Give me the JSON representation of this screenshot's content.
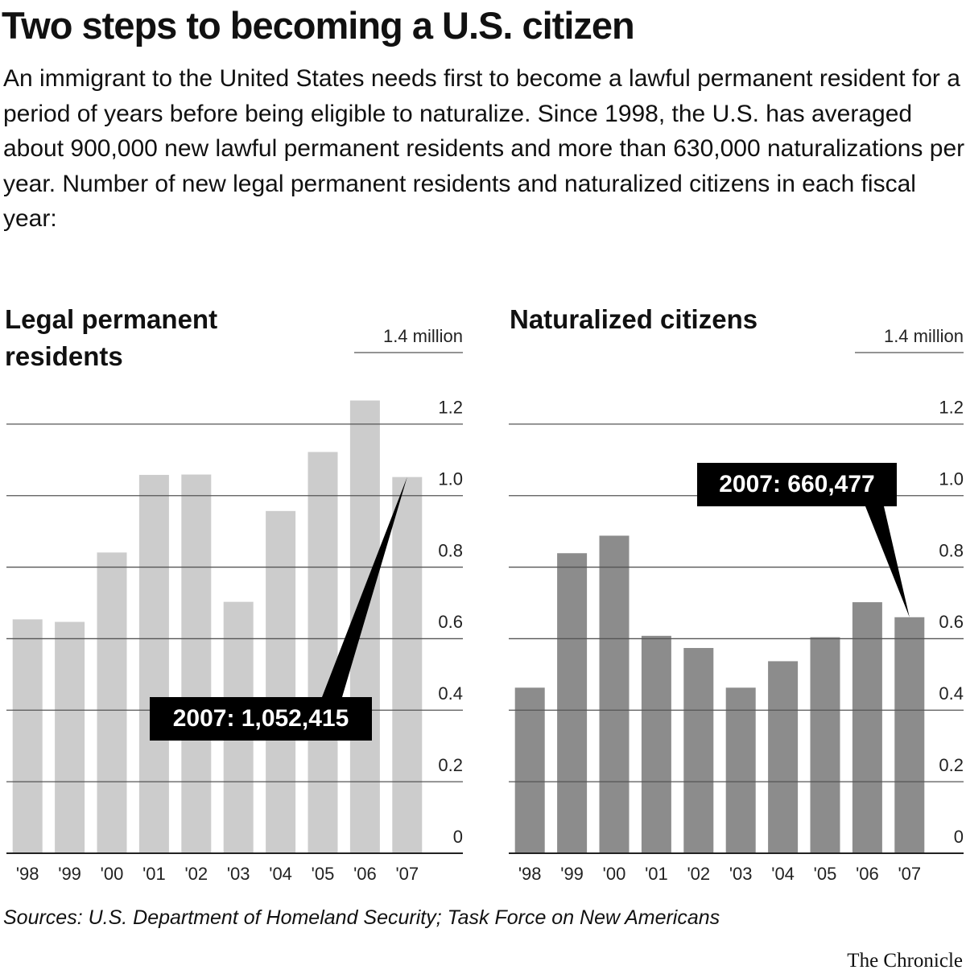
{
  "title": "Two steps to becoming a U.S. citizen",
  "description": "An immigrant to the United States needs first to become a lawful permanent resident for a period of years before being eligible to naturalize. Since 1998, the U.S. has averaged about 900,000 new lawful permanent residents and more than 630,000 naturalizations per year. Number of new legal permanent residents and naturalized citizens in each fiscal year:",
  "source": "Sources: U.S. Department of Homeland Security; Task Force on New Americans",
  "credit": "The Chronicle",
  "chart_data": [
    {
      "type": "bar",
      "title": "Legal permanent residents",
      "categories": [
        "'98",
        "'99",
        "'00",
        "'01",
        "'02",
        "'03",
        "'04",
        "'05",
        "'06",
        "'07"
      ],
      "values": [
        0.654,
        0.647,
        0.841,
        1.058,
        1.059,
        0.703,
        0.957,
        1.122,
        1.266,
        1.052
      ],
      "color": "#cccccc",
      "ylim": [
        0,
        1.4
      ],
      "yticks": [
        0,
        0.2,
        0.4,
        0.6,
        0.8,
        {
          "value": 1,
          "label": "1.0"
        },
        1.2,
        {
          "value": 1.4,
          "label": "1.4 million"
        }
      ],
      "grid": true,
      "annotation": "2007: 1,052,415"
    },
    {
      "type": "bar",
      "title": "Naturalized citizens",
      "categories": [
        "'98",
        "'99",
        "'00",
        "'01",
        "'02",
        "'03",
        "'04",
        "'05",
        "'06",
        "'07"
      ],
      "values": [
        0.463,
        0.839,
        0.888,
        0.608,
        0.574,
        0.463,
        0.537,
        0.604,
        0.702,
        0.66
      ],
      "color": "#8c8c8c",
      "ylim": [
        0,
        1.4
      ],
      "yticks": [
        0,
        0.2,
        0.4,
        0.6,
        0.8,
        {
          "value": 1,
          "label": "1.0"
        },
        1.2,
        {
          "value": 1.4,
          "label": "1.4 million"
        }
      ],
      "grid": true,
      "annotation": "2007: 660,477"
    }
  ]
}
